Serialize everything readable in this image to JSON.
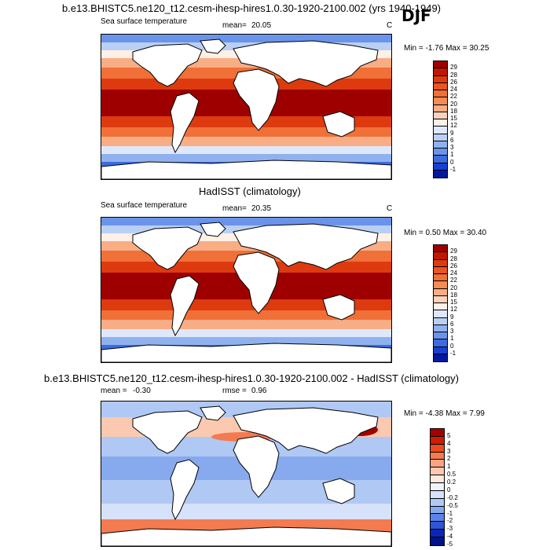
{
  "season": "DJF",
  "panels": [
    {
      "title": "b.e13.BHISTC5.ne120_t12.cesm-ihesp-hires1.0.30-1920-2100.002 (yrs 1940-1949)",
      "left_label": "Sea surface temperature",
      "stat_label": "mean=",
      "stat_value": "20.05",
      "unit": "C",
      "minmax": "Min =  -1.76 Max =  30.25",
      "colorbar_labels": [
        "29",
        "28",
        "26",
        "24",
        "22",
        "20",
        "18",
        "15",
        "12",
        "9",
        "6",
        "3",
        "1",
        "0",
        "-1"
      ]
    },
    {
      "title": "HadISST (climatology)",
      "left_label": "Sea surface temperature",
      "stat_label": "mean=",
      "stat_value": "20.35",
      "unit": "C",
      "minmax": "Min =  0.50 Max =  30.40",
      "colorbar_labels": [
        "29",
        "28",
        "26",
        "24",
        "22",
        "20",
        "18",
        "15",
        "12",
        "9",
        "6",
        "3",
        "1",
        "0",
        "-1"
      ]
    },
    {
      "title": "b.e13.BHISTC5.ne120_t12.cesm-ihesp-hires1.0.30-1920-2100.002 - HadISST (climatology)",
      "left_label": "mean =",
      "left_value": "-0.30",
      "stat_label": "rmse =",
      "stat_value": "0.96",
      "minmax": "Min =  -4.38 Max =   7.99",
      "colorbar_labels": [
        "5",
        "4",
        "3",
        "2",
        "1",
        "0.5",
        "0.2",
        "0",
        "-0.2",
        "-0.5",
        "-1",
        "-2",
        "-3",
        "-4",
        "-5"
      ]
    }
  ],
  "colors": {
    "sst_scale": [
      "#9e0000",
      "#c01800",
      "#dd3a10",
      "#e95525",
      "#f07038",
      "#f48c55",
      "#f8ad85",
      "#fbd2bc",
      "#fdf0e6",
      "#dfe8fb",
      "#b9d0f4",
      "#8fb2ee",
      "#6a94ea",
      "#3d6ce0",
      "#1a3fd4",
      "#0019a0"
    ],
    "diff_scale": [
      "#a50000",
      "#d01c00",
      "#ed4a20",
      "#f47a50",
      "#f8a482",
      "#fbc9b0",
      "#fde9dd",
      "#eef3fd",
      "#d5e2fa",
      "#b0c8f4",
      "#87a9ee",
      "#5b84e8",
      "#2f55d8",
      "#0a27b8",
      "#00138a"
    ],
    "land": "#ffffff"
  }
}
